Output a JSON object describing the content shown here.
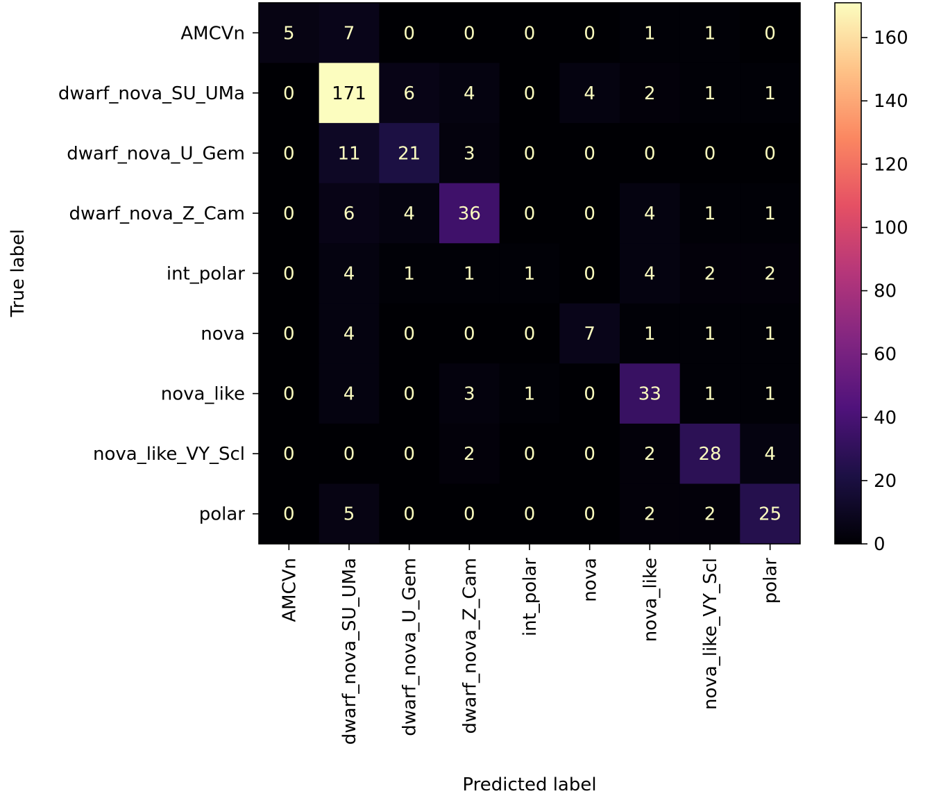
{
  "chart_data": {
    "type": "heatmap",
    "title": "",
    "xlabel": "Predicted label",
    "ylabel": "True label",
    "x_categories": [
      "AMCVn",
      "dwarf_nova_SU_UMa",
      "dwarf_nova_U_Gem",
      "dwarf_nova_Z_Cam",
      "int_polar",
      "nova",
      "nova_like",
      "nova_like_VY_Scl",
      "polar"
    ],
    "y_categories": [
      "AMCVn",
      "dwarf_nova_SU_UMa",
      "dwarf_nova_U_Gem",
      "dwarf_nova_Z_Cam",
      "int_polar",
      "nova",
      "nova_like",
      "nova_like_VY_Scl",
      "polar"
    ],
    "values": [
      [
        5,
        7,
        0,
        0,
        0,
        0,
        1,
        1,
        0
      ],
      [
        0,
        171,
        6,
        4,
        0,
        4,
        2,
        1,
        1
      ],
      [
        0,
        11,
        21,
        3,
        0,
        0,
        0,
        0,
        0
      ],
      [
        0,
        6,
        4,
        36,
        0,
        0,
        4,
        1,
        1
      ],
      [
        0,
        4,
        1,
        1,
        1,
        0,
        4,
        2,
        2
      ],
      [
        0,
        4,
        0,
        0,
        0,
        7,
        1,
        1,
        1
      ],
      [
        0,
        4,
        0,
        3,
        1,
        0,
        33,
        1,
        1
      ],
      [
        0,
        0,
        0,
        2,
        0,
        0,
        2,
        28,
        4
      ],
      [
        0,
        5,
        0,
        0,
        0,
        0,
        2,
        2,
        25
      ]
    ],
    "colormap": "magma",
    "colorbar": {
      "range": [
        0,
        171
      ],
      "ticks": [
        0,
        20,
        40,
        60,
        80,
        100,
        120,
        140,
        160
      ]
    },
    "text_color_dark_cells": "#fcfdbf",
    "text_color_light_cells": "#000004"
  }
}
